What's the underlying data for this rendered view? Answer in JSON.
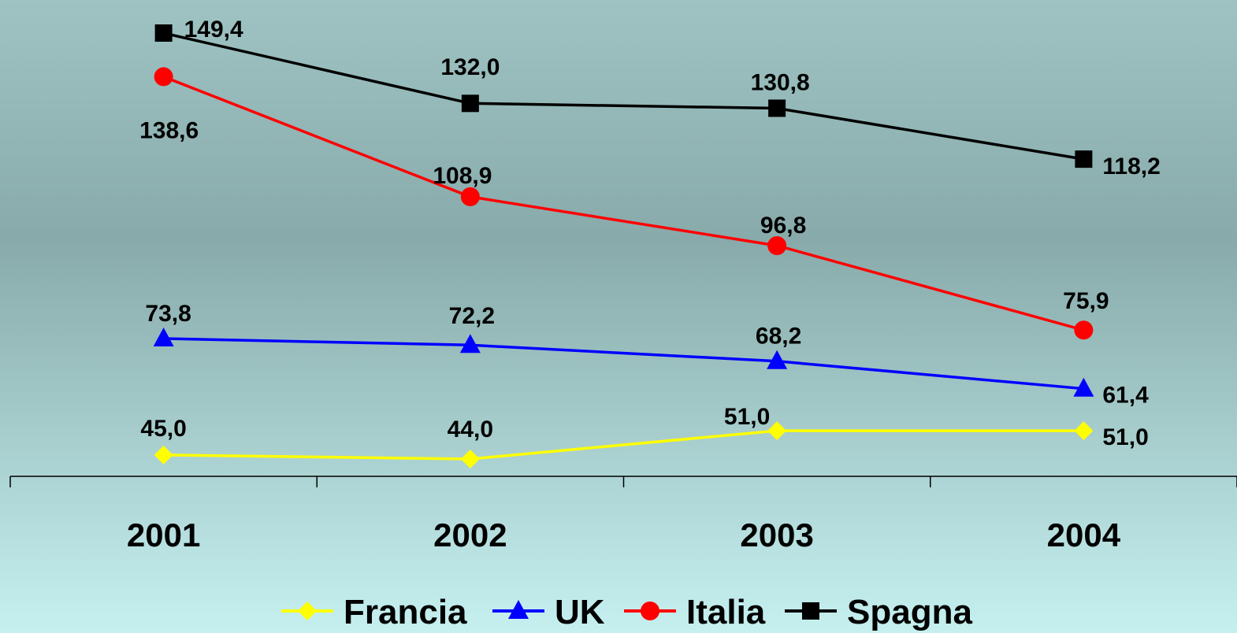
{
  "chart_data": {
    "type": "line",
    "categories": [
      "2001",
      "2002",
      "2003",
      "2004"
    ],
    "series": [
      {
        "name": "Francia",
        "values": [
          45.0,
          44.0,
          51.0,
          51.0
        ],
        "labels": [
          "45,0",
          "44,0",
          "51,0",
          "51,0"
        ],
        "color": "#FFFF00",
        "marker": "diamond"
      },
      {
        "name": "UK",
        "values": [
          73.8,
          72.2,
          68.2,
          61.4
        ],
        "labels": [
          "73,8",
          "72,2",
          "68,2",
          "61,4"
        ],
        "color": "#0000FF",
        "marker": "triangle"
      },
      {
        "name": "Italia",
        "values": [
          138.6,
          108.9,
          96.8,
          75.9
        ],
        "labels": [
          "138,6",
          "108,9",
          "96,8",
          "75,9"
        ],
        "color": "#FF0000",
        "marker": "circle"
      },
      {
        "name": "Spagna",
        "values": [
          149.4,
          132.0,
          130.8,
          118.2
        ],
        "labels": [
          "149,4",
          "132,0",
          "130,8",
          "118,2"
        ],
        "color": "#000000",
        "marker": "square"
      }
    ],
    "title": "",
    "xlabel": "",
    "ylabel": "",
    "ylim": [
      36,
      155
    ],
    "legend_position": "bottom",
    "grid": false,
    "background": {
      "top": "#9FC3C3",
      "middle": "#88AAAA",
      "bottom": "#C6F0F0"
    }
  }
}
